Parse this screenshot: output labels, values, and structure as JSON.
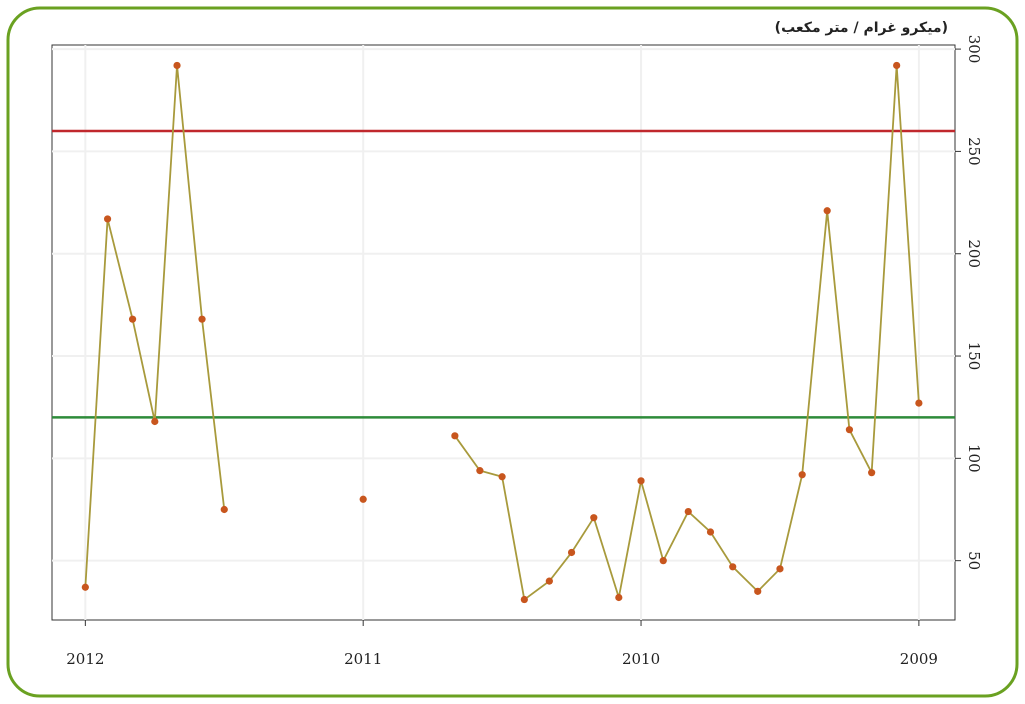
{
  "chart_data": {
    "type": "line",
    "y_label": "(ميكرو غرام / متر مكعب)",
    "x": [
      2009.0,
      2009.08,
      2009.17,
      2009.25,
      2009.33,
      2009.42,
      2009.5,
      2009.58,
      2009.67,
      2009.75,
      2009.83,
      2009.92,
      2010.0,
      2010.08,
      2010.17,
      2010.25,
      2010.33,
      2010.42,
      2010.5,
      2010.58,
      2010.67,
      2010.75,
      2010.83,
      2010.92,
      2011.0,
      2011.08,
      2011.17,
      2011.25,
      2011.33,
      2011.42,
      2011.5,
      2011.58,
      2011.67,
      2011.75,
      2011.83,
      2011.92,
      2012.0
    ],
    "series": [
      {
        "color": "#a89a3c",
        "marker_color": "#c8561e",
        "values": [
          127,
          292,
          93,
          114,
          221,
          92,
          46,
          35,
          47,
          64,
          74,
          50,
          89,
          32,
          71,
          54,
          40,
          31,
          91,
          94,
          111,
          null,
          null,
          null,
          80,
          null,
          null,
          null,
          null,
          null,
          75,
          168,
          292,
          118,
          168,
          217,
          37
        ]
      }
    ],
    "reference_lines": [
      {
        "value": 260,
        "color": "#c0282d"
      },
      {
        "value": 120,
        "color": "#2e8b3a"
      }
    ],
    "xlim": [
      2012.12,
      2008.87
    ],
    "xticks": [
      2012,
      2011,
      2010,
      2009
    ],
    "ylim": [
      21,
      302
    ],
    "yticks": [
      50,
      100,
      150,
      200,
      250,
      300
    ],
    "grid": true,
    "y_axis_side": "right"
  }
}
